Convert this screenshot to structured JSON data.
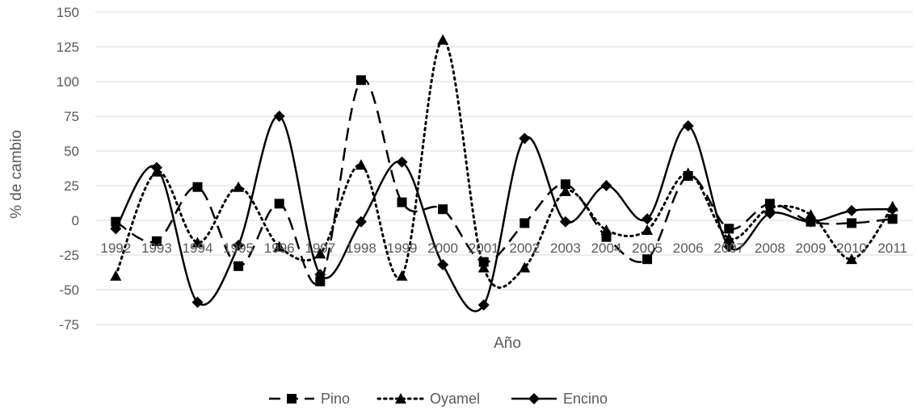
{
  "chart_data": {
    "type": "line",
    "title": "",
    "xlabel": "Año",
    "ylabel": "% de cambio",
    "ylim": [
      -75,
      150
    ],
    "y_ticks": [
      "150",
      "125",
      "100",
      "75",
      "50",
      "25",
      "0",
      "-25",
      "-50",
      "-75"
    ],
    "grid": "horizontal",
    "legend_position": "bottom",
    "categories": [
      "1992",
      "1993",
      "1994",
      "1995",
      "1996",
      "1997",
      "1998",
      "1999",
      "2000",
      "2001",
      "2002",
      "2003",
      "2004",
      "2005",
      "2006",
      "2007",
      "2008",
      "2009",
      "2010",
      "2011"
    ],
    "series": [
      {
        "name": "Pino",
        "style": "dashed",
        "marker": "square",
        "color": "#000000",
        "values": [
          -1,
          -15,
          24,
          -33,
          12,
          -44,
          101,
          13,
          8,
          -30,
          -2,
          26,
          -12,
          -28,
          32,
          -6,
          12,
          -1,
          -2,
          1
        ]
      },
      {
        "name": "Oyamel",
        "style": "dotted",
        "marker": "triangle",
        "color": "#000000",
        "values": [
          -40,
          35,
          -16,
          24,
          -19,
          -24,
          40,
          -40,
          130,
          -34,
          -34,
          21,
          -7,
          -7,
          34,
          -13,
          9,
          4,
          -28,
          10
        ]
      },
      {
        "name": "Encino",
        "style": "solid",
        "marker": "diamond",
        "color": "#000000",
        "values": [
          -6,
          38,
          -59,
          -18,
          75,
          -39,
          -1,
          42,
          -32,
          -61,
          59,
          -1,
          25,
          1,
          68,
          -19,
          5,
          -1,
          7,
          8
        ]
      }
    ]
  }
}
